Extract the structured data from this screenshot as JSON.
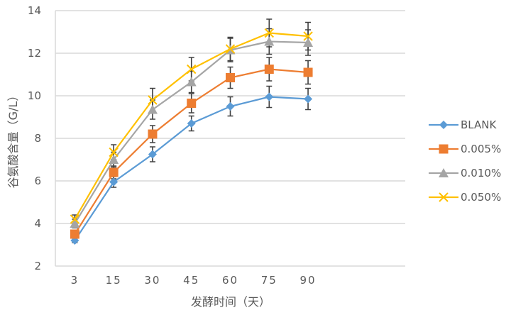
{
  "chart_data": {
    "type": "line",
    "title": "",
    "xlabel": "发酵时间（天）",
    "ylabel": "谷氨酸含量（G/L）",
    "categories": [
      "3",
      "15",
      "30",
      "45",
      "60",
      "75",
      "90"
    ],
    "ylim": [
      2,
      14
    ],
    "yticks": [
      2,
      4,
      6,
      8,
      10,
      12,
      14
    ],
    "grid": true,
    "legend_position": "right",
    "error_bars": true,
    "series": [
      {
        "name": "BLANK",
        "color": "#5B9BD5",
        "marker": "diamond",
        "values": [
          3.2,
          5.95,
          7.25,
          8.7,
          9.5,
          9.95,
          9.85
        ],
        "err": [
          0.1,
          0.25,
          0.35,
          0.35,
          0.45,
          0.5,
          0.5
        ]
      },
      {
        "name": "0.005%",
        "color": "#ED7D31",
        "marker": "square",
        "values": [
          3.5,
          6.4,
          8.2,
          9.65,
          10.85,
          11.25,
          11.1
        ],
        "err": [
          0.15,
          0.3,
          0.4,
          0.45,
          0.5,
          0.55,
          0.55
        ]
      },
      {
        "name": "0.010%",
        "color": "#A5A5A5",
        "marker": "triangle",
        "values": [
          4.0,
          7.0,
          9.35,
          10.65,
          12.15,
          12.55,
          12.5
        ],
        "err": [
          0.2,
          0.35,
          0.45,
          0.5,
          0.55,
          0.6,
          0.6
        ]
      },
      {
        "name": "0.050%",
        "color": "#FFC000",
        "marker": "x",
        "values": [
          4.2,
          7.35,
          9.8,
          11.25,
          12.2,
          12.95,
          12.8
        ],
        "err": [
          0.2,
          0.35,
          0.55,
          0.55,
          0.55,
          0.65,
          0.65
        ]
      }
    ]
  }
}
